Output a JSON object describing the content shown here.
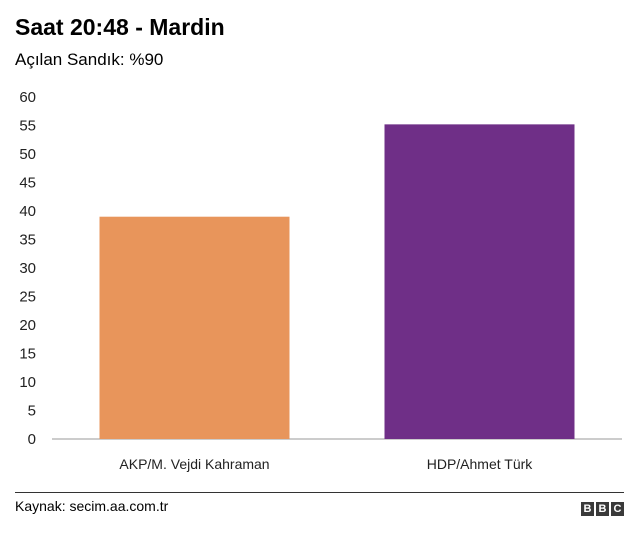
{
  "title": "Saat 20:48 - Mardin",
  "subtitle": "Açılan Sandık: %90",
  "source": "Kaynak: secim.aa.com.tr",
  "logo": [
    "B",
    "B",
    "C"
  ],
  "chart_data": {
    "type": "bar",
    "title": "Saat 20:48 - Mardin",
    "subtitle": "Açılan Sandık: %90",
    "categories": [
      "AKP/M. Vejdi Kahraman",
      "HDP/Ahmet Türk"
    ],
    "values": [
      39,
      55.2
    ],
    "colors": [
      "#e8955b",
      "#6f2f87"
    ],
    "xlabel": "",
    "ylabel": "",
    "ylim": [
      0,
      60
    ],
    "yticks": [
      0,
      5,
      10,
      15,
      20,
      25,
      30,
      35,
      40,
      45,
      50,
      55,
      60
    ],
    "grid": false,
    "legend": "none"
  }
}
